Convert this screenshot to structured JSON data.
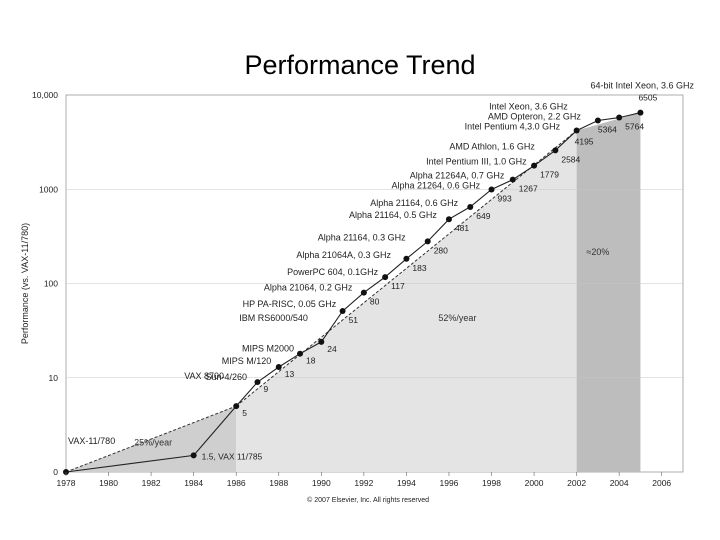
{
  "slide": {
    "title": "Performance Trend"
  },
  "chart_data": {
    "type": "line",
    "ylabel": "Performance (vs. VAX-11/780)",
    "xlabel": "",
    "y_scale": "log",
    "x_ticks": [
      "1978",
      "1980",
      "1982",
      "1984",
      "1986",
      "1988",
      "1990",
      "1992",
      "1994",
      "1996",
      "1998",
      "2000",
      "2002",
      "2004",
      "2006"
    ],
    "y_ticks": [
      "0",
      "10",
      "100",
      "1000",
      "10,000"
    ],
    "series": [
      {
        "points": [
          {
            "x": 1978,
            "y": 1,
            "label": "VAX-11/780",
            "value": ""
          },
          {
            "x": 1984,
            "y": 1.5,
            "label": "",
            "value": "1.5, VAX 11/785"
          },
          {
            "x": 1986,
            "y": 5,
            "label": "VAX 8700",
            "value": "5"
          },
          {
            "x": 1987,
            "y": 9,
            "label": "Sun-4/260",
            "value": "9"
          },
          {
            "x": 1988,
            "y": 13,
            "label": "MIPS M/120",
            "value": "13"
          },
          {
            "x": 1989,
            "y": 18,
            "label": "MIPS M2000",
            "value": "18"
          },
          {
            "x": 1990,
            "y": 24,
            "label": "IBM RS6000/540",
            "value": "24"
          },
          {
            "x": 1991,
            "y": 51,
            "label": "HP PA-RISC, 0.05 GHz",
            "value": "51"
          },
          {
            "x": 1992,
            "y": 80,
            "label": "Alpha 21064, 0.2 GHz",
            "value": "80"
          },
          {
            "x": 1993,
            "y": 117,
            "label": "PowerPC 604, 0.1GHz",
            "value": "117"
          },
          {
            "x": 1994,
            "y": 183,
            "label": "Alpha 21064A, 0.3 GHz",
            "value": "183"
          },
          {
            "x": 1995,
            "y": 280,
            "label": "Alpha 21164, 0.3 GHz",
            "value": "280"
          },
          {
            "x": 1996,
            "y": 481,
            "label": "Alpha 21164, 0.5 GHz",
            "value": "481"
          },
          {
            "x": 1997,
            "y": 649,
            "label": "Alpha 21164, 0.6 GHz",
            "value": "649"
          },
          {
            "x": 1998,
            "y": 993,
            "label": "Alpha 21264, 0.6 GHz",
            "value": "993"
          },
          {
            "x": 1999,
            "y": 1267,
            "label": "Alpha 21264A, 0.7 GHz",
            "value": "1267"
          },
          {
            "x": 2000,
            "y": 1779,
            "label": "Intel Pentium III, 1.0 GHz",
            "value": "1779"
          },
          {
            "x": 2001,
            "y": 2584,
            "label": "AMD Athlon, 1.6 GHz",
            "value": "2584"
          },
          {
            "x": 2002,
            "y": 4195,
            "label": "Intel Pentium 4,3.0 GHz",
            "value": "4195"
          },
          {
            "x": 2003,
            "y": 5364,
            "label": "AMD Opteron, 2.2 GHz",
            "value": "5364"
          },
          {
            "x": 2004,
            "y": 5764,
            "label": "Intel Xeon, 3.6 GHz",
            "value": "5764"
          },
          {
            "x": 2005,
            "y": 6505,
            "label": "64-bit Intel Xeon, 3.6 GHz",
            "value": "6505"
          }
        ]
      }
    ],
    "annotations": [
      "25%/year",
      "52%/year",
      "≈20%"
    ],
    "copyright": "© 2007 Elsevier, Inc. All rights reserved"
  }
}
